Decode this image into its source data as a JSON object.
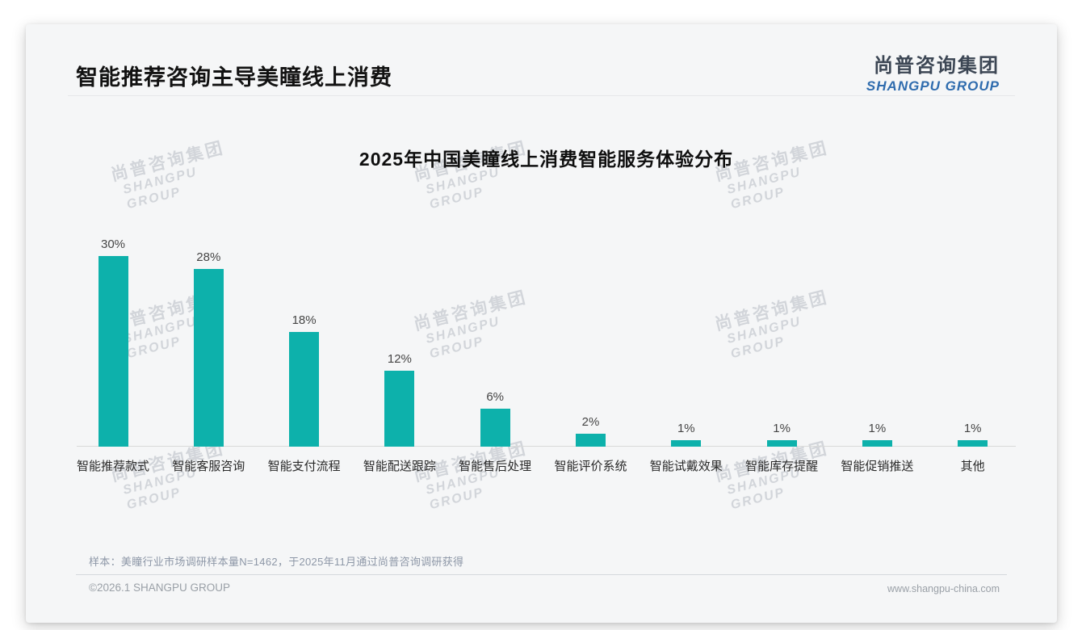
{
  "page": {
    "title": "智能推荐咨询主导美瞳线上消费",
    "logo": {
      "zh": "尚普咨询集团",
      "en": "SHANGPU GROUP"
    },
    "watermark": {
      "zh": "尚普咨询集团",
      "en": "SHANGPU GROUP"
    },
    "note": "样本：美瞳行业市场调研样本量N=1462，于2025年11月通过尚普咨询调研获得",
    "footer": {
      "copyright": "©2026.1 SHANGPU GROUP",
      "website": "www.shangpu-china.com"
    }
  },
  "colors": {
    "bar": "#0db1ab",
    "logo_blue": "#2f6cae"
  },
  "chart_data": {
    "type": "bar",
    "title": "2025年中国美瞳线上消费智能服务体验分布",
    "categories": [
      "智能推荐款式",
      "智能客服咨询",
      "智能支付流程",
      "智能配送跟踪",
      "智能售后处理",
      "智能评价系统",
      "智能试戴效果",
      "智能库存提醒",
      "智能促销推送",
      "其他"
    ],
    "values": [
      30,
      28,
      18,
      12,
      6,
      2,
      1,
      1,
      1,
      1
    ],
    "value_labels": [
      "30%",
      "28%",
      "18%",
      "12%",
      "6%",
      "2%",
      "1%",
      "1%",
      "1%",
      "1%"
    ],
    "unit": "%",
    "xlabel": "",
    "ylabel": "",
    "ylim": [
      0,
      33
    ],
    "grid": false,
    "legend": false,
    "bar_color": "#0db1ab"
  }
}
